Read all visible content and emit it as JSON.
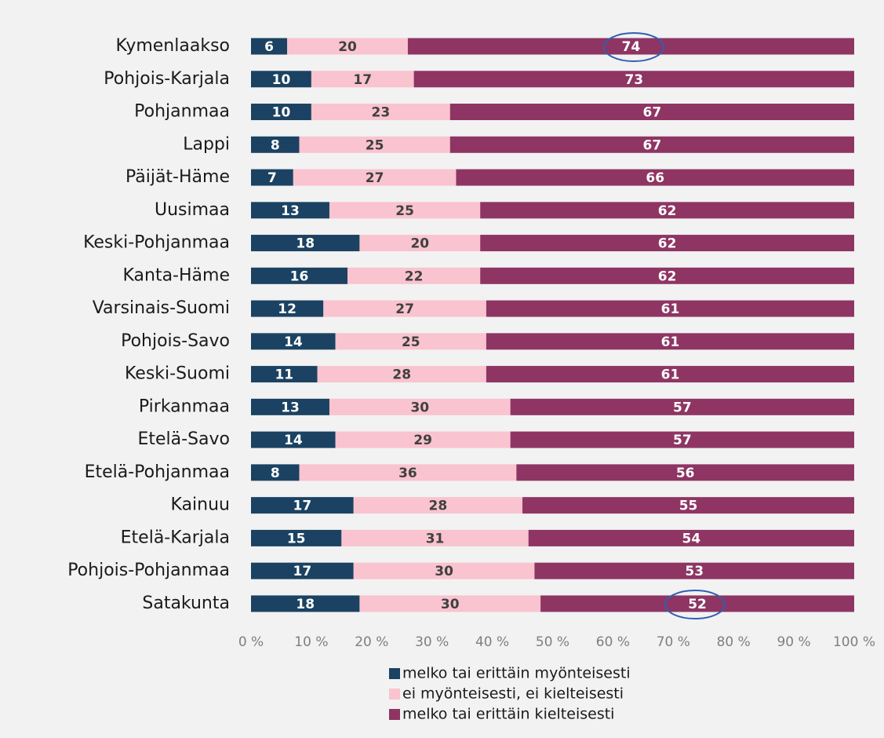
{
  "chart_data": {
    "type": "stacked_barh",
    "categories": [
      "Kymenlaakso",
      "Pohjois-Karjala",
      "Pohjanmaa",
      "Lappi",
      "Päijät-Häme",
      "Uusimaa",
      "Keski-Pohjanmaa",
      "Kanta-Häme",
      "Varsinais-Suomi",
      "Pohjois-Savo",
      "Keski-Suomi",
      "Pirkanmaa",
      "Etelä-Savo",
      "Etelä-Pohjanmaa",
      "Kainuu",
      "Etelä-Karjala",
      "Pohjois-Pohjanmaa",
      "Satakunta"
    ],
    "series": [
      {
        "name": "melko tai erittäin myönteisesti",
        "color": "#1b4262",
        "values": [
          6,
          10,
          10,
          8,
          7,
          13,
          18,
          16,
          12,
          14,
          11,
          13,
          14,
          8,
          17,
          15,
          17,
          18
        ]
      },
      {
        "name": "ei myönteisesti, ei kielteisesti",
        "color": "#f9c3cf",
        "values": [
          20,
          17,
          23,
          25,
          27,
          25,
          20,
          22,
          27,
          25,
          28,
          30,
          29,
          36,
          28,
          31,
          30,
          30
        ]
      },
      {
        "name": "melko tai erittäin kielteisesti",
        "color": "#8e3563",
        "values": [
          74,
          73,
          67,
          67,
          66,
          62,
          62,
          62,
          61,
          61,
          61,
          57,
          57,
          56,
          55,
          54,
          53,
          52
        ]
      }
    ],
    "xlim": [
      0,
      100
    ],
    "xticks": [
      {
        "value": 0,
        "label": "0 %"
      },
      {
        "value": 10,
        "label": "10 %"
      },
      {
        "value": 20,
        "label": "20 %"
      },
      {
        "value": 30,
        "label": "30 %"
      },
      {
        "value": 40,
        "label": "40 %"
      },
      {
        "value": 50,
        "label": "50 %"
      },
      {
        "value": 60,
        "label": "60 %"
      },
      {
        "value": 70,
        "label": "70 %"
      },
      {
        "value": 80,
        "label": "80 %"
      },
      {
        "value": 90,
        "label": "90 %"
      },
      {
        "value": 100,
        "label": "100 %"
      }
    ],
    "legend": "bottom"
  }
}
